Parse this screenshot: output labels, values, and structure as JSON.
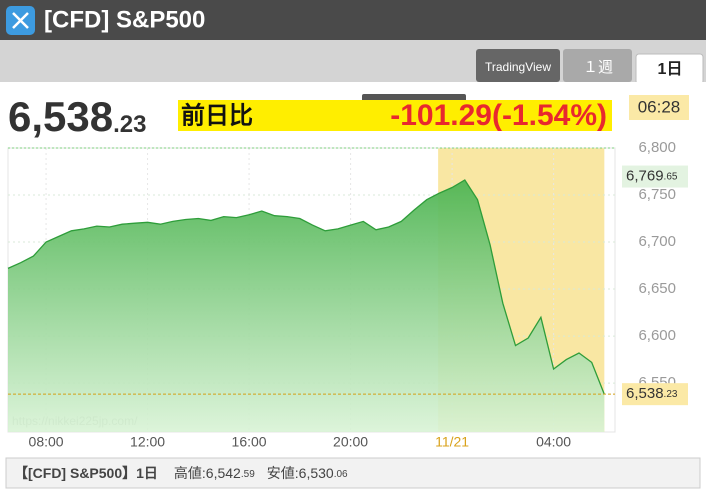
{
  "header": {
    "title": "[CFD] S&P500"
  },
  "tabs": [
    "TradingView",
    "１週",
    "1日"
  ],
  "price": {
    "integer": "6,538",
    "decimal": ".23"
  },
  "change": {
    "label": "前日比",
    "value": "-101.29(-1.54%)"
  },
  "time": "06:28",
  "chart_data": {
    "type": "area",
    "x": [
      6.5,
      7,
      7.5,
      8,
      8.5,
      9,
      9.5,
      10,
      10.5,
      11,
      11.5,
      12,
      12.5,
      13,
      13.5,
      14,
      14.5,
      15,
      15.5,
      16,
      16.5,
      17,
      17.5,
      18,
      18.5,
      19,
      19.5,
      20,
      20.5,
      21,
      21.5,
      22,
      22.5,
      23,
      23.5,
      24,
      24.5,
      25,
      25.5,
      26,
      26.5,
      27,
      27.5,
      28,
      28.5,
      29,
      29.5,
      30
    ],
    "values": [
      6672,
      6678,
      6685,
      6700,
      6706,
      6712,
      6714,
      6717,
      6716,
      6719,
      6720,
      6721,
      6719,
      6722,
      6724,
      6725,
      6723,
      6727,
      6726,
      6729,
      6733,
      6728,
      6727,
      6725,
      6718,
      6712,
      6714,
      6718,
      6722,
      6713,
      6716,
      6722,
      6734,
      6745,
      6752,
      6758,
      6766,
      6745,
      6697,
      6635,
      6590,
      6598,
      6620,
      6565,
      6575,
      6582,
      6572,
      6538.23
    ],
    "xlim": [
      6.5,
      30.42
    ],
    "ylim": [
      6498,
      6800
    ],
    "xticks": [
      {
        "value": 8,
        "label": "08:00"
      },
      {
        "value": 12,
        "label": "12:00"
      },
      {
        "value": 16,
        "label": "16:00"
      },
      {
        "value": 20,
        "label": "20:00"
      },
      {
        "value": 24,
        "label": "11/21"
      },
      {
        "value": 28,
        "label": "04:00"
      }
    ],
    "yticks": [
      {
        "value": 6550,
        "label": "6,550"
      },
      {
        "value": 6600,
        "label": "6,600"
      },
      {
        "value": 6650,
        "label": "6,650"
      },
      {
        "value": 6700,
        "label": "6,700"
      },
      {
        "value": 6750,
        "label": "6,750"
      },
      {
        "value": 6800,
        "label": "6,800"
      }
    ],
    "highlight_range": [
      23.45,
      30.0
    ],
    "color": "#2e9d3a",
    "fill_color": "#5cbf5f",
    "highlight_color": "#f9e7a3",
    "grid": true,
    "watermark": "https://nikkei225jp.com/",
    "high_marker": {
      "value": 6769.65,
      "label": "6,769",
      "decimal": ".65"
    },
    "last_marker": {
      "value": 6538.23,
      "label": "6,538",
      "decimal": ".23"
    }
  },
  "footer": {
    "title": "【[CFD] S&P500】1日",
    "high_label": "高値:6,542",
    "high_decimal": ".59",
    "low_label": "安値:6,530",
    "low_decimal": ".06"
  }
}
